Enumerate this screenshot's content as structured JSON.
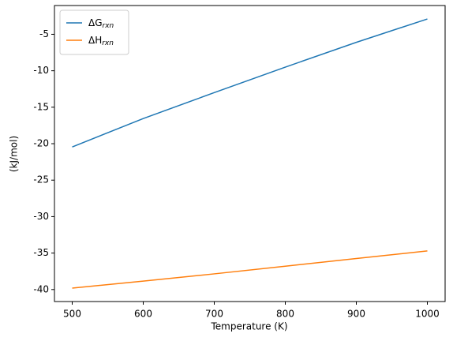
{
  "chart_data": {
    "type": "line",
    "x": [
      500,
      600,
      700,
      800,
      900,
      1000
    ],
    "series": [
      {
        "name": "ΔG",
        "name_subscript": "rxn",
        "color": "#1f77b4",
        "values": [
          -20.45,
          -16.55,
          -13.0,
          -9.5,
          -6.1,
          -2.9
        ]
      },
      {
        "name": "ΔH",
        "name_subscript": "rxn",
        "color": "#ff7f0e",
        "values": [
          -39.8,
          -38.85,
          -37.85,
          -36.8,
          -35.75,
          -34.7
        ]
      }
    ],
    "x_label": "Temperature (K)",
    "y_label": "(kJ/mol)",
    "xlim": [
      475,
      1025
    ],
    "ylim": [
      -41.645,
      -1.055
    ],
    "xticks": [
      500,
      600,
      700,
      800,
      900,
      1000
    ],
    "yticks": [
      -40,
      -35,
      -30,
      -25,
      -20,
      -15,
      -10,
      -5
    ],
    "legend": "upper-left",
    "grid": false
  }
}
